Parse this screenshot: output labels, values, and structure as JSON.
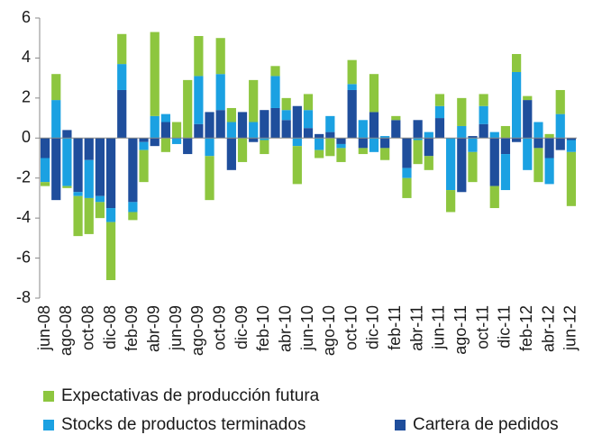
{
  "chart_data": {
    "type": "bar",
    "stacked": true,
    "categories": [
      "jun-08",
      null,
      "ago-08",
      null,
      "oct-08",
      null,
      "dic-08",
      null,
      "feb-09",
      null,
      "abr-09",
      null,
      "jun-09",
      null,
      "ago-09",
      null,
      "oct-09",
      null,
      "dic-09",
      null,
      "feb-10",
      null,
      "abr-10",
      null,
      "jun-10",
      null,
      "ago-10",
      null,
      "oct-10",
      null,
      "dic-10",
      null,
      "feb-11",
      null,
      "abr-11",
      null,
      "jun-11",
      null,
      "ago-11",
      null,
      "oct-11",
      null,
      "dic-11",
      null,
      "feb-12",
      null,
      "abr-12",
      null,
      "jun-12"
    ],
    "series": [
      {
        "name": "Expectativas de producción futura",
        "color": "#8dc63f",
        "values": [
          -0.2,
          1.3,
          -0.1,
          -2.0,
          -1.8,
          -0.8,
          -2.9,
          1.5,
          -0.4,
          -1.6,
          4.2,
          -0.7,
          0.8,
          2.9,
          2.0,
          -2.2,
          1.8,
          0.7,
          -1.2,
          2.1,
          -0.7,
          0.5,
          0.6,
          -1.9,
          0.8,
          -0.4,
          -0.9,
          -0.7,
          1.2,
          -0.3,
          1.9,
          -0.6,
          0.2,
          -1.0,
          -1.2,
          -0.7,
          0.6,
          -1.1,
          1.4,
          -1.5,
          0.6,
          -1.1,
          0.6,
          0.9,
          0.2,
          -1.7,
          0.2,
          1.2,
          -2.7
        ]
      },
      {
        "name": "Stocks de productos terminados",
        "color": "#1ba1e2",
        "values": [
          -1.2,
          1.9,
          -2.4,
          -0.2,
          -1.9,
          -0.3,
          -0.7,
          1.3,
          -0.5,
          -0.4,
          1.1,
          0.4,
          -0.3,
          0,
          2.4,
          -0.9,
          1.8,
          0.8,
          0,
          0.8,
          -0.1,
          1.6,
          0.5,
          -0.4,
          0.9,
          -0.6,
          0.8,
          -0.2,
          0.3,
          0.9,
          -0.7,
          0.1,
          0,
          -0.5,
          -0.1,
          0.3,
          0.6,
          -2.6,
          0.6,
          -0.7,
          0.9,
          0.3,
          -1.8,
          3.3,
          -1.6,
          0.8,
          -1.3,
          1.2,
          -0.6
        ]
      },
      {
        "name": "Cartera de pedidos",
        "color": "#1f4e9c",
        "values": [
          -1.0,
          -3.1,
          0.4,
          -2.7,
          -1.1,
          -2.9,
          -3.5,
          2.4,
          -3.2,
          -0.2,
          -0.4,
          0.8,
          0,
          -0.8,
          0.7,
          1.3,
          1.4,
          -1.6,
          1.3,
          -0.2,
          1.4,
          1.5,
          0.9,
          1.6,
          0.5,
          0.2,
          0.3,
          -0.3,
          2.4,
          -0.5,
          1.3,
          -0.5,
          0.9,
          -1.5,
          0.9,
          -0.9,
          1.0,
          0,
          -2.7,
          0.1,
          0.7,
          -2.4,
          -0.8,
          -0.2,
          1.9,
          -0.5,
          -1.0,
          -0.6,
          -0.1
        ]
      }
    ],
    "ylim": [
      -8,
      6
    ],
    "yticks": [
      -8,
      -6,
      -4,
      -2,
      0,
      2,
      4,
      6
    ]
  }
}
